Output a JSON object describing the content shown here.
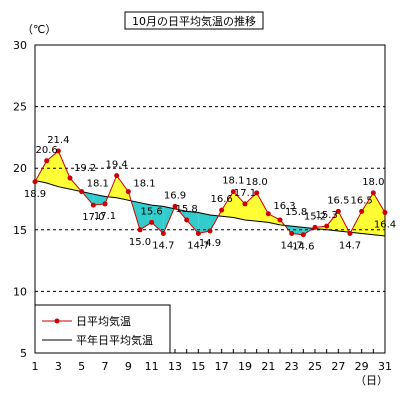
{
  "chart_data": {
    "type": "line",
    "title": "10月の日平均気温の推移",
    "y_unit": "（℃）",
    "x_unit": "（日）",
    "ylim": [
      5,
      30
    ],
    "y_ticks": [
      5,
      10,
      15,
      20,
      25,
      30
    ],
    "xlim": [
      1,
      31
    ],
    "x_ticks": [
      1,
      3,
      5,
      7,
      9,
      11,
      13,
      15,
      17,
      19,
      21,
      23,
      25,
      27,
      29,
      31
    ],
    "grid": true,
    "legend_position": "bottom-left",
    "x": [
      1,
      2,
      3,
      4,
      5,
      6,
      7,
      8,
      9,
      10,
      11,
      12,
      13,
      14,
      15,
      16,
      17,
      18,
      19,
      20,
      21,
      22,
      23,
      24,
      25,
      26,
      27,
      28,
      29,
      30,
      31
    ],
    "series": [
      {
        "name": "日平均気温",
        "color": "#cc0000",
        "values": [
          18.9,
          20.6,
          21.4,
          19.2,
          18.1,
          17.0,
          17.1,
          19.4,
          18.1,
          15.0,
          15.6,
          14.7,
          16.9,
          15.8,
          14.7,
          14.9,
          16.6,
          18.1,
          17.1,
          18.0,
          16.3,
          15.8,
          14.7,
          14.6,
          15.2,
          15.3,
          16.5,
          14.7,
          16.5,
          18.0,
          16.4
        ]
      },
      {
        "name": "平年日平均気温",
        "color": "#000000",
        "values": [
          19.0,
          18.8,
          18.5,
          18.3,
          18.1,
          17.9,
          17.7,
          17.6,
          17.4,
          17.2,
          17.0,
          16.9,
          16.7,
          16.5,
          16.4,
          16.2,
          16.1,
          16.0,
          15.8,
          15.7,
          15.6,
          15.4,
          15.3,
          15.2,
          15.1,
          15.0,
          14.9,
          14.8,
          14.7,
          14.6,
          14.5
        ]
      }
    ],
    "data_labels": [
      {
        "day": 1,
        "text": "18.9",
        "pos": "below"
      },
      {
        "day": 2,
        "text": "20.6",
        "pos": "above"
      },
      {
        "day": 3,
        "text": "21.4",
        "pos": "above"
      },
      {
        "day": 4,
        "text": "19.2",
        "pos": "above-right"
      },
      {
        "day": 5,
        "text": "18.1",
        "pos": "right"
      },
      {
        "day": 6,
        "text": "17.0",
        "pos": "below"
      },
      {
        "day": 7,
        "text": "17.1",
        "pos": "below"
      },
      {
        "day": 8,
        "text": "19.4",
        "pos": "above"
      },
      {
        "day": 9,
        "text": "18.1",
        "pos": "right"
      },
      {
        "day": 10,
        "text": "15.0",
        "pos": "below"
      },
      {
        "day": 11,
        "text": "15.6",
        "pos": "above"
      },
      {
        "day": 12,
        "text": "14.7",
        "pos": "below"
      },
      {
        "day": 13,
        "text": "16.9",
        "pos": "above"
      },
      {
        "day": 14,
        "text": "15.8",
        "pos": "above"
      },
      {
        "day": 15,
        "text": "14.7",
        "pos": "below"
      },
      {
        "day": 16,
        "text": "14.9",
        "pos": "below"
      },
      {
        "day": 17,
        "text": "16.6",
        "pos": "above"
      },
      {
        "day": 18,
        "text": "18.1",
        "pos": "above"
      },
      {
        "day": 19,
        "text": "17.1",
        "pos": "above"
      },
      {
        "day": 20,
        "text": "18.0",
        "pos": "above"
      },
      {
        "day": 21,
        "text": "16.3",
        "pos": "right"
      },
      {
        "day": 22,
        "text": "15.8",
        "pos": "right"
      },
      {
        "day": 23,
        "text": "14.7",
        "pos": "below"
      },
      {
        "day": 24,
        "text": "14.6",
        "pos": "below"
      },
      {
        "day": 25,
        "text": "15.2",
        "pos": "above"
      },
      {
        "day": 26,
        "text": "15.3",
        "pos": "above"
      },
      {
        "day": 27,
        "text": "16.5",
        "pos": "above"
      },
      {
        "day": 28,
        "text": "14.7",
        "pos": "below"
      },
      {
        "day": 29,
        "text": "16.5",
        "pos": "above"
      },
      {
        "day": 30,
        "text": "18.0",
        "pos": "above"
      },
      {
        "day": 31,
        "text": "16.4",
        "pos": "below"
      }
    ],
    "fill_above_normal_color": "#ffff33",
    "fill_below_normal_color": "#33cccc"
  }
}
